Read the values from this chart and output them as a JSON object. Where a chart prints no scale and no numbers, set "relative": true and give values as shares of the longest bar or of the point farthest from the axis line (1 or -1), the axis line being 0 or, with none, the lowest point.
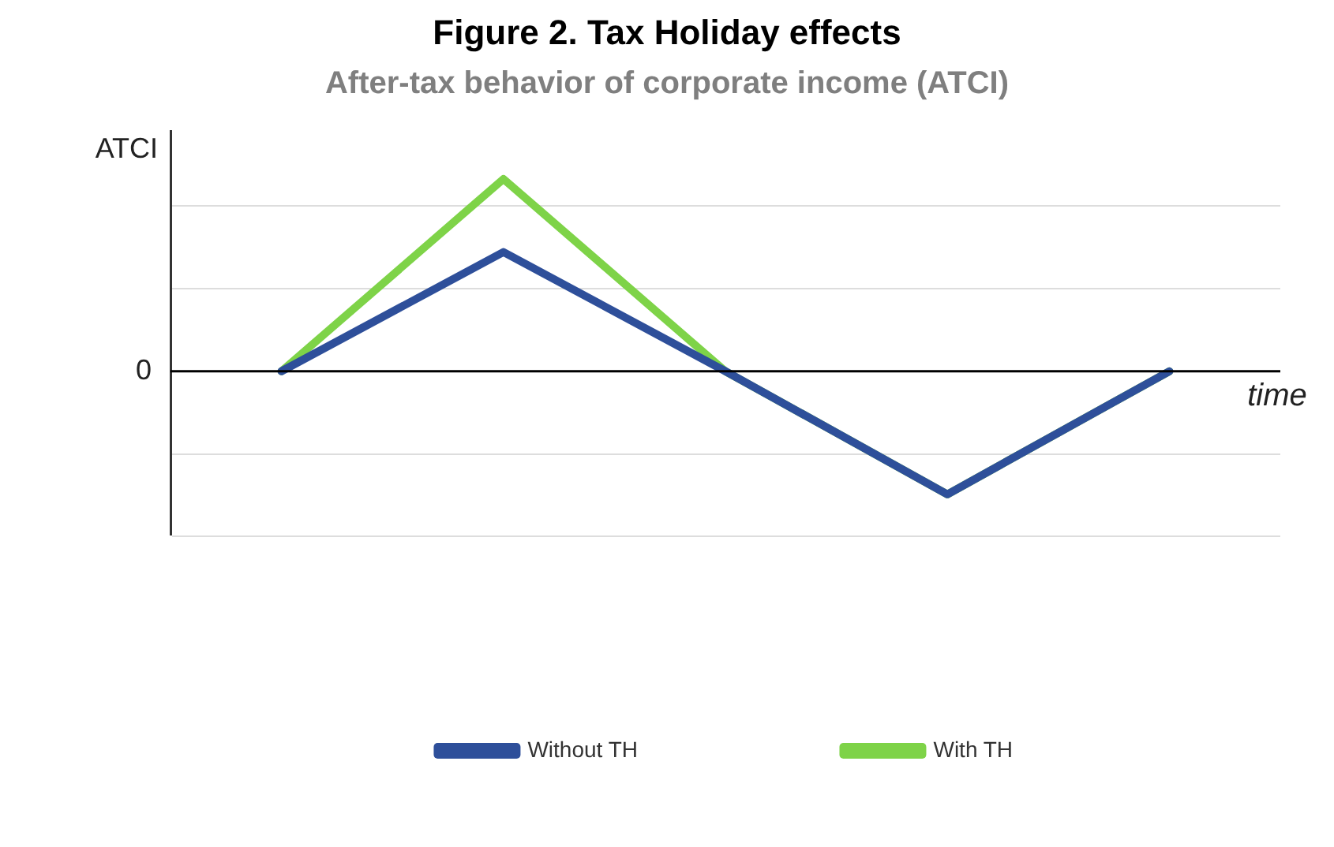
{
  "chart_data": {
    "type": "line",
    "title": "Figure 2. Tax Holiday effects",
    "subtitle": "After-tax behavior of corporate income (ATCI)",
    "ylabel": "ATCI",
    "xlabel": "time",
    "relative": true,
    "categories": [
      null,
      null,
      null,
      null,
      null
    ],
    "series": [
      {
        "name": "Without TH",
        "color": "#2e4f9a",
        "values": [
          0,
          0.62,
          0,
          -0.64,
          0
        ]
      },
      {
        "name": "With TH",
        "color": "#7ed348",
        "values": [
          0,
          1,
          0,
          -0.64,
          0
        ]
      }
    ],
    "ref_lines": [
      {
        "axis": "y",
        "value": 0,
        "label": "0",
        "color": "#000000"
      }
    ],
    "grid": "y",
    "legend": "bottom",
    "marker": "none",
    "line_style": "solid"
  }
}
